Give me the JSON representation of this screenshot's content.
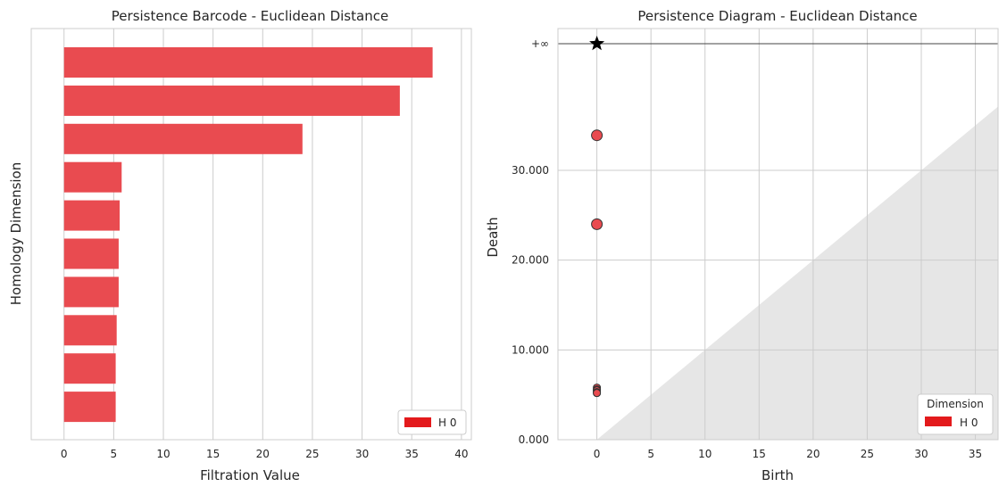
{
  "chart_data": [
    {
      "type": "bar",
      "orientation": "horizontal",
      "title": "Persistence Barcode - Euclidean Distance",
      "xlabel": "Filtration Value",
      "ylabel": "Homology Dimension",
      "xlim": [
        -3.3,
        41
      ],
      "xticks": [
        0,
        5,
        10,
        15,
        20,
        25,
        30,
        35,
        40
      ],
      "grid": true,
      "legend": {
        "placement": "bottom-right",
        "entries": [
          {
            "label": "H 0",
            "color": "#e31a1c"
          }
        ]
      },
      "bar_color": "#e94b50",
      "series": [
        {
          "name": "H 0",
          "bars": [
            {
              "start": 0,
              "end": 37.1
            },
            {
              "start": 0,
              "end": 33.8
            },
            {
              "start": 0,
              "end": 24.0
            },
            {
              "start": 0,
              "end": 5.8
            },
            {
              "start": 0,
              "end": 5.6
            },
            {
              "start": 0,
              "end": 5.5
            },
            {
              "start": 0,
              "end": 5.5
            },
            {
              "start": 0,
              "end": 5.3
            },
            {
              "start": 0,
              "end": 5.2
            },
            {
              "start": 0,
              "end": 5.2
            }
          ]
        }
      ]
    },
    {
      "type": "scatter",
      "title": "Persistence Diagram - Euclidean Distance",
      "xlabel": "Birth",
      "ylabel": "Death",
      "xlim": [
        -3.6,
        37.1
      ],
      "ylim": [
        0,
        44.1
      ],
      "xticks": [
        0,
        5,
        10,
        15,
        20,
        25,
        30,
        35
      ],
      "yticks": [
        0,
        10,
        20,
        30
      ],
      "ytick_labels": [
        "0.000",
        "10.000",
        "20.000",
        "30.000"
      ],
      "infinity_label": "+∞",
      "infinity_y": 44.1,
      "grid": true,
      "diagonal_shaded": true,
      "legend": {
        "placement": "bottom-right",
        "title": "Dimension",
        "entries": [
          {
            "label": "H 0",
            "color": "#e31a1c"
          }
        ]
      },
      "point_color": "#e94b50",
      "points": [
        {
          "birth": 0,
          "death": 33.9
        },
        {
          "birth": 0,
          "death": 24.0
        },
        {
          "birth": 0,
          "death": 5.8
        },
        {
          "birth": 0,
          "death": 5.6
        },
        {
          "birth": 0,
          "death": 5.5
        },
        {
          "birth": 0,
          "death": 5.5
        },
        {
          "birth": 0,
          "death": 5.3
        },
        {
          "birth": 0,
          "death": 5.2
        },
        {
          "birth": 0,
          "death": 5.2
        }
      ],
      "infinite_points": [
        {
          "birth": 0
        }
      ]
    }
  ]
}
